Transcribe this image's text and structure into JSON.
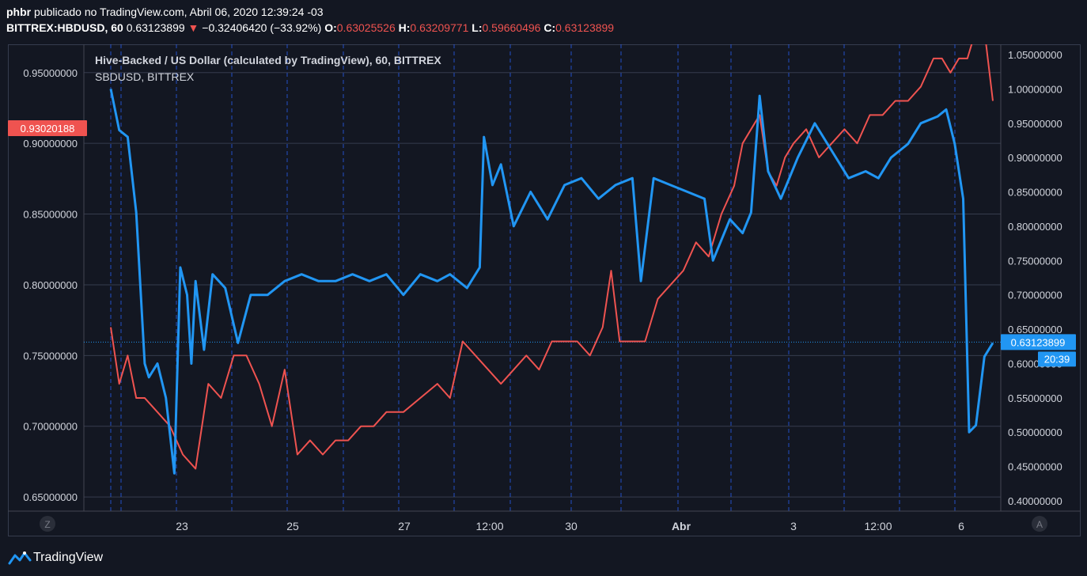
{
  "header": {
    "user": "phbr",
    "published_text": "publicado no TradingView.com, Abril 06, 2020 12:39:24 -03",
    "symbol": "BITTREX:HBDUSD, 60",
    "last": "0.63123899",
    "change": "−0.32406420 (−33.92%)",
    "o_label": "O:",
    "o_value": "0.63025526",
    "h_label": "H:",
    "h_value": "0.63209771",
    "l_label": "L:",
    "l_value": "0.59660496",
    "c_label": "C:",
    "c_value": "0.63123899"
  },
  "legend": {
    "main": "Hive-Backed / US Dollar (calculated by TradingView), 60, BITTREX",
    "overlay": "SBDUSD, BITTREX"
  },
  "axis_buttons": {
    "left": "Z",
    "right": "A"
  },
  "colors": {
    "background": "#131722",
    "hbd_line": "#2196f3",
    "sbd_line": "#ef5350",
    "grid": "#363c4e",
    "session_lines": "#2962ff"
  },
  "chart_data": {
    "type": "line",
    "x_axis": {
      "tick_labels": [
        "23",
        "25",
        "27",
        "12:00",
        "30",
        "Abr",
        "3",
        "12:00",
        "6"
      ],
      "bold_ticks": [
        "Abr"
      ]
    },
    "left_axis": {
      "series": "SBDUSD, BITTREX",
      "ylim": [
        0.64,
        0.97
      ],
      "ticks": [
        "0.65000000",
        "0.70000000",
        "0.75000000",
        "0.80000000",
        "0.85000000",
        "0.90000000",
        "0.95000000"
      ],
      "current_value_label": "0.93020188"
    },
    "right_axis": {
      "series": "Hive-Backed / US Dollar (calculated by TradingView), 60, BITTREX",
      "ylim": [
        0.385,
        1.065
      ],
      "ticks": [
        "0.40000000",
        "0.45000000",
        "0.50000000",
        "0.55000000",
        "0.60000000",
        "0.65000000",
        "0.70000000",
        "0.75000000",
        "0.80000000",
        "0.85000000",
        "0.90000000",
        "0.95000000",
        "1.00000000",
        "1.05000000"
      ],
      "current_value_label": "0.63123899",
      "countdown_label": "20:39",
      "current_value": 0.63123899
    },
    "series": [
      {
        "name": "Hive-Backed / US Dollar (calculated by TradingView), 60, BITTREX",
        "axis": "right",
        "color": "#2196f3",
        "points": [
          [
            0.0,
            1.0
          ],
          [
            0.01,
            0.94
          ],
          [
            0.02,
            0.93
          ],
          [
            0.03,
            0.82
          ],
          [
            0.04,
            0.6
          ],
          [
            0.045,
            0.58
          ],
          [
            0.055,
            0.6
          ],
          [
            0.065,
            0.55
          ],
          [
            0.075,
            0.44
          ],
          [
            0.082,
            0.74
          ],
          [
            0.09,
            0.7
          ],
          [
            0.095,
            0.6
          ],
          [
            0.1,
            0.72
          ],
          [
            0.11,
            0.62
          ],
          [
            0.12,
            0.73
          ],
          [
            0.135,
            0.71
          ],
          [
            0.15,
            0.63
          ],
          [
            0.165,
            0.7
          ],
          [
            0.185,
            0.7
          ],
          [
            0.205,
            0.72
          ],
          [
            0.225,
            0.73
          ],
          [
            0.245,
            0.72
          ],
          [
            0.265,
            0.72
          ],
          [
            0.285,
            0.73
          ],
          [
            0.305,
            0.72
          ],
          [
            0.325,
            0.73
          ],
          [
            0.345,
            0.7
          ],
          [
            0.365,
            0.73
          ],
          [
            0.385,
            0.72
          ],
          [
            0.4,
            0.73
          ],
          [
            0.42,
            0.71
          ],
          [
            0.435,
            0.74
          ],
          [
            0.44,
            0.93
          ],
          [
            0.45,
            0.86
          ],
          [
            0.46,
            0.89
          ],
          [
            0.475,
            0.8
          ],
          [
            0.495,
            0.85
          ],
          [
            0.515,
            0.81
          ],
          [
            0.535,
            0.86
          ],
          [
            0.555,
            0.87
          ],
          [
            0.575,
            0.84
          ],
          [
            0.595,
            0.86
          ],
          [
            0.615,
            0.87
          ],
          [
            0.625,
            0.72
          ],
          [
            0.64,
            0.87
          ],
          [
            0.66,
            0.86
          ],
          [
            0.68,
            0.85
          ],
          [
            0.7,
            0.84
          ],
          [
            0.71,
            0.75
          ],
          [
            0.73,
            0.81
          ],
          [
            0.745,
            0.79
          ],
          [
            0.755,
            0.82
          ],
          [
            0.765,
            0.99
          ],
          [
            0.775,
            0.88
          ],
          [
            0.79,
            0.84
          ],
          [
            0.81,
            0.9
          ],
          [
            0.83,
            0.95
          ],
          [
            0.85,
            0.91
          ],
          [
            0.87,
            0.87
          ],
          [
            0.89,
            0.88
          ],
          [
            0.905,
            0.87
          ],
          [
            0.92,
            0.9
          ],
          [
            0.94,
            0.92
          ],
          [
            0.955,
            0.95
          ],
          [
            0.975,
            0.96
          ],
          [
            0.985,
            0.97
          ],
          [
            0.995,
            0.92
          ],
          [
            1.005,
            0.84
          ],
          [
            1.012,
            0.5
          ],
          [
            1.02,
            0.51
          ],
          [
            1.03,
            0.61
          ],
          [
            1.04,
            0.63
          ]
        ]
      },
      {
        "name": "SBDUSD, BITTREX",
        "axis": "left",
        "color": "#ef5350",
        "points": [
          [
            0.0,
            0.77
          ],
          [
            0.01,
            0.73
          ],
          [
            0.02,
            0.75
          ],
          [
            0.03,
            0.72
          ],
          [
            0.04,
            0.72
          ],
          [
            0.055,
            0.71
          ],
          [
            0.07,
            0.7
          ],
          [
            0.085,
            0.68
          ],
          [
            0.1,
            0.67
          ],
          [
            0.115,
            0.73
          ],
          [
            0.13,
            0.72
          ],
          [
            0.145,
            0.75
          ],
          [
            0.16,
            0.75
          ],
          [
            0.175,
            0.73
          ],
          [
            0.19,
            0.7
          ],
          [
            0.205,
            0.74
          ],
          [
            0.22,
            0.68
          ],
          [
            0.235,
            0.69
          ],
          [
            0.25,
            0.68
          ],
          [
            0.265,
            0.69
          ],
          [
            0.28,
            0.69
          ],
          [
            0.295,
            0.7
          ],
          [
            0.31,
            0.7
          ],
          [
            0.325,
            0.71
          ],
          [
            0.345,
            0.71
          ],
          [
            0.365,
            0.72
          ],
          [
            0.385,
            0.73
          ],
          [
            0.4,
            0.72
          ],
          [
            0.415,
            0.76
          ],
          [
            0.43,
            0.75
          ],
          [
            0.445,
            0.74
          ],
          [
            0.46,
            0.73
          ],
          [
            0.475,
            0.74
          ],
          [
            0.49,
            0.75
          ],
          [
            0.505,
            0.74
          ],
          [
            0.52,
            0.76
          ],
          [
            0.535,
            0.76
          ],
          [
            0.55,
            0.76
          ],
          [
            0.565,
            0.75
          ],
          [
            0.58,
            0.77
          ],
          [
            0.59,
            0.81
          ],
          [
            0.6,
            0.76
          ],
          [
            0.615,
            0.76
          ],
          [
            0.63,
            0.76
          ],
          [
            0.645,
            0.79
          ],
          [
            0.66,
            0.8
          ],
          [
            0.675,
            0.81
          ],
          [
            0.69,
            0.83
          ],
          [
            0.705,
            0.82
          ],
          [
            0.72,
            0.85
          ],
          [
            0.735,
            0.87
          ],
          [
            0.745,
            0.9
          ],
          [
            0.755,
            0.91
          ],
          [
            0.765,
            0.92
          ],
          [
            0.775,
            0.88
          ],
          [
            0.785,
            0.87
          ],
          [
            0.795,
            0.89
          ],
          [
            0.805,
            0.9
          ],
          [
            0.82,
            0.91
          ],
          [
            0.835,
            0.89
          ],
          [
            0.85,
            0.9
          ],
          [
            0.865,
            0.91
          ],
          [
            0.88,
            0.9
          ],
          [
            0.895,
            0.92
          ],
          [
            0.91,
            0.92
          ],
          [
            0.925,
            0.93
          ],
          [
            0.94,
            0.93
          ],
          [
            0.955,
            0.94
          ],
          [
            0.97,
            0.96
          ],
          [
            0.98,
            0.96
          ],
          [
            0.99,
            0.95
          ],
          [
            1.0,
            0.96
          ],
          [
            1.01,
            0.96
          ],
          [
            1.02,
            0.98
          ],
          [
            1.03,
            0.98
          ],
          [
            1.04,
            0.93
          ]
        ]
      }
    ]
  },
  "footer": {
    "brand": "TradingView"
  }
}
